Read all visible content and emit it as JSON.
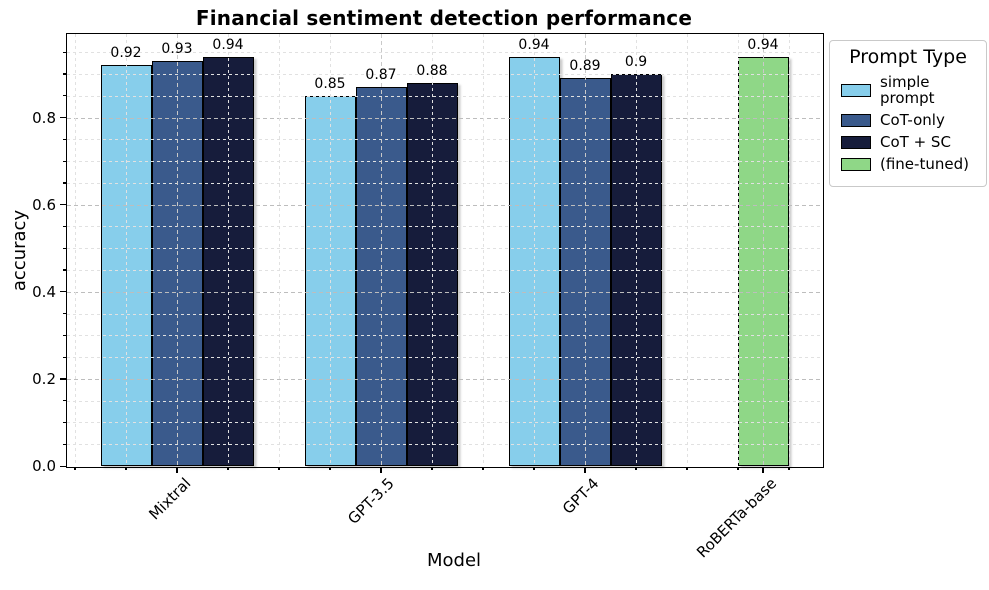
{
  "chart_data": {
    "type": "bar",
    "title": "Financial sentiment detection performance",
    "xlabel": "Model",
    "ylabel": "accuracy",
    "categories": [
      "Mixtral",
      "GPT-3.5",
      "GPT-4",
      "RoBERTa-base"
    ],
    "series": [
      {
        "name": "simple prompt",
        "color": "#87CEEB",
        "values": [
          0.92,
          0.85,
          0.94,
          null
        ],
        "labels": [
          "0.92",
          "0.85",
          "0.94",
          ""
        ]
      },
      {
        "name": "CoT-only",
        "color": "#3A5A8C",
        "values": [
          0.93,
          0.87,
          0.89,
          null
        ],
        "labels": [
          "0.93",
          "0.87",
          "0.89",
          ""
        ]
      },
      {
        "name": "CoT + SC",
        "color": "#161C3B",
        "values": [
          0.94,
          0.88,
          0.9,
          null
        ],
        "labels": [
          "0.94",
          "0.88",
          "0.9",
          ""
        ]
      },
      {
        "name": "(fine-tuned)",
        "color": "#8FD787",
        "values": [
          null,
          null,
          null,
          0.94
        ],
        "labels": [
          "",
          "",
          "",
          "0.94"
        ]
      }
    ],
    "ylim": [
      0,
      0.994
    ],
    "ytick_labels": [
      "0.0",
      "0.2",
      "0.4",
      "0.6",
      "0.8"
    ],
    "ytick_values": [
      0,
      0.2,
      0.4,
      0.6,
      0.8
    ],
    "y_minor_step": 0.05,
    "grid": "both, dashed, drawn above bars",
    "bar_edge_color": "#000000",
    "legend": {
      "title": "Prompt Type",
      "position": "upper-right-outside"
    }
  }
}
